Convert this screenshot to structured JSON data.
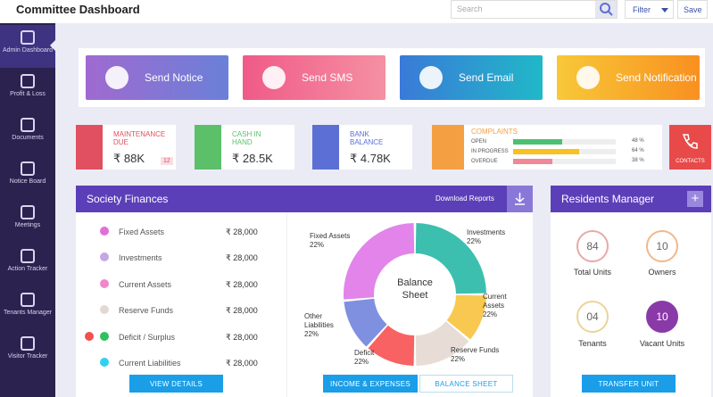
{
  "header": {
    "title": "Committee Dashboard",
    "search_placeholder": "Search",
    "filter": "Filter",
    "save": "Save"
  },
  "sidebar": [
    "Admin Dashboard",
    "Profit & Loss",
    "Documents",
    "Notice Board",
    "Meetings",
    "Action Tracker",
    "Tenants Manager",
    "Visitor Tracker"
  ],
  "actions": [
    "Send Notice",
    "Send SMS",
    "Send Email",
    "Send Notification"
  ],
  "stats": [
    {
      "label": "MAINTENANCE DUE",
      "value": "₹ 88K",
      "badge": "12"
    },
    {
      "label": "CASH IN HAND",
      "value": "₹ 28.5K"
    },
    {
      "label": "BANK BALANCE",
      "value": "₹ 4.78K"
    }
  ],
  "complaints": {
    "label": "COMPLAINTS",
    "items": [
      {
        "name": "OPEN",
        "percent": 48,
        "percent_label": "48 %"
      },
      {
        "name": "IN PROGRESS",
        "percent": 64,
        "percent_label": "64 %"
      },
      {
        "name": "OVERDUE",
        "percent": 38,
        "percent_label": "38 %"
      }
    ]
  },
  "contacts": "CONTACTS",
  "society_finances": {
    "title": "Society Finances",
    "download": "Download Reports",
    "items": [
      {
        "name": "Fixed Assets",
        "amount": "₹ 28,000"
      },
      {
        "name": "Investments",
        "amount": "₹ 28,000"
      },
      {
        "name": "Current Assets",
        "amount": "₹ 28,000"
      },
      {
        "name": "Reserve Funds",
        "amount": "₹ 28,000"
      },
      {
        "name": "Deficit / Surplus",
        "amount": "₹ 28,000"
      },
      {
        "name": "Current Liabilities",
        "amount": "₹ 28,000"
      }
    ],
    "chart_center": "Balance Sheet",
    "chart_labels": [
      {
        "name": "Fixed Assets",
        "percent": "22%"
      },
      {
        "name": "Investments",
        "percent": "22%"
      },
      {
        "name": "Current Assets",
        "percent": "22%"
      },
      {
        "name": "Reserve Funds",
        "percent": "22%"
      },
      {
        "name": "Deficit",
        "percent": "22%"
      },
      {
        "name": "Other Liabilities",
        "percent": "22%"
      }
    ],
    "view_details": "VIEW DETAILS",
    "tabs": [
      "INCOME & EXPENSES",
      "BALANCE SHEET"
    ]
  },
  "residents": {
    "title": "Residents Manager",
    "items": [
      {
        "count": "84",
        "label": "Total Units"
      },
      {
        "count": "10",
        "label": "Owners"
      },
      {
        "count": "04",
        "label": "Tenants"
      },
      {
        "count": "10",
        "label": "Vacant Units"
      }
    ],
    "button": "TRANSFER UNIT"
  }
}
